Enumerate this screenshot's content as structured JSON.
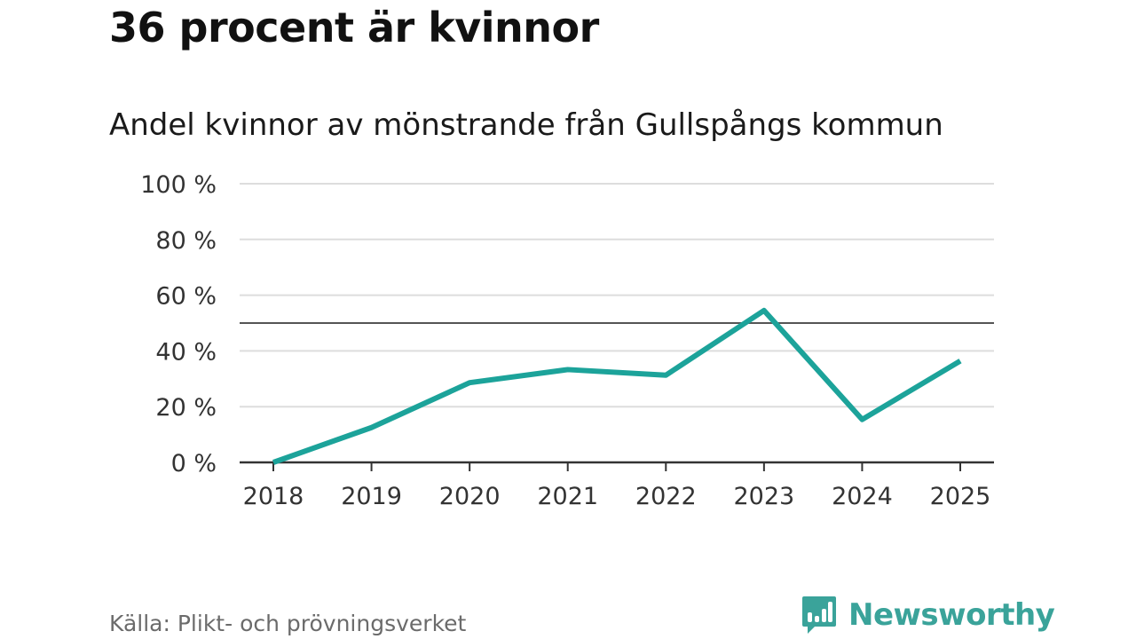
{
  "headline": "36 procent är kvinnor",
  "source": "Källa: Plikt- och prövningsverket",
  "logo": {
    "text": "Newsworthy",
    "color": "#3aa39a",
    "icon": "bar-chart-speech-icon"
  },
  "colors": {
    "line": "#1ca39a",
    "grid": "#dddddd",
    "reference": "#555555",
    "axis": "#333333"
  },
  "chart_data": {
    "type": "line",
    "title": "Andel kvinnor av mönstrande från Gullspångs kommun",
    "categories": [
      "2018",
      "2019",
      "2020",
      "2021",
      "2022",
      "2023",
      "2024",
      "2025"
    ],
    "series": [
      {
        "name": "Andel kvinnor",
        "values": [
          0,
          12.5,
          28.6,
          33.3,
          31.3,
          54.5,
          15.4,
          36.4
        ]
      }
    ],
    "ylim": [
      0,
      100
    ],
    "yticks": [
      0,
      20,
      40,
      60,
      80,
      100
    ],
    "ytick_labels": [
      "0 %",
      "20 %",
      "40 %",
      "60 %",
      "80 %",
      "100 %"
    ],
    "reference_line": 50,
    "xlabel": "",
    "ylabel": "",
    "grid": true
  }
}
